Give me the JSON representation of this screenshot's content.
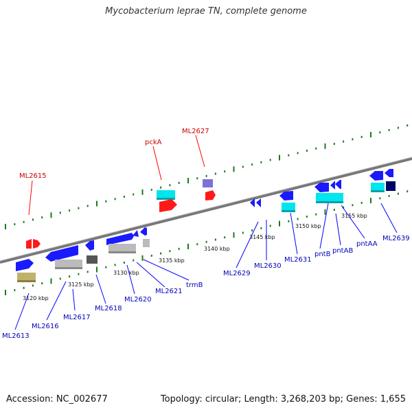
{
  "title": "Mycobacterium leprae TN, complete genome",
  "footer": {
    "accession": "Accession: NC_002677",
    "summary": "Topology: circular; Length: 3,268,203 bp; Genes: 1,655"
  },
  "colors": {
    "backbone": "#777777",
    "tick": "#1a7a1a",
    "strand_plus_label": "#cc0000",
    "strand_minus_label": "#0000bb",
    "gene_red": "#ff1a1a",
    "gene_blue": "#1a1aff",
    "gene_cyan": "#00e5ee",
    "gene_gray": "#bbbbbb",
    "gene_darkgray": "#555555",
    "gene_olive": "#bfb26a",
    "gene_purple": "#7f6fd8",
    "gene_navy": "#000066"
  },
  "scale_labels": [
    "3120 kbp",
    "3125 kbp",
    "3130 kbp",
    "3135 kbp",
    "3140 kbp",
    "3145 kbp",
    "3150 kbp",
    "3155 kbp"
  ],
  "gene_labels_top": [
    "ML2615",
    "pckA",
    "ML2627"
  ],
  "gene_labels_bottom": [
    "ML2613",
    "ML2616",
    "ML2617",
    "ML2618",
    "ML2620",
    "ML2621",
    "trmB",
    "ML2629",
    "ML2630",
    "ML2631",
    "pntB",
    "pntAB",
    "pntAA",
    "ML2639"
  ]
}
